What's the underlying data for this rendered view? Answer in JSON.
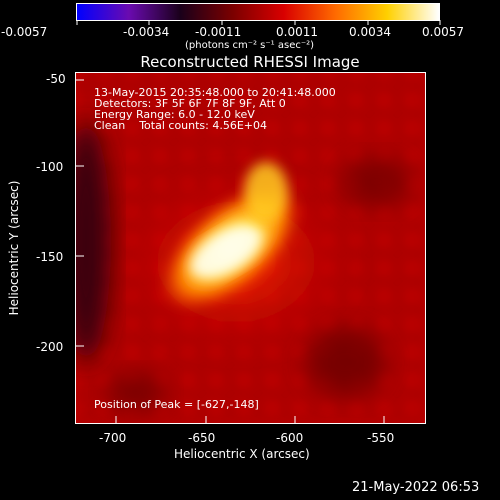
{
  "colorbar": {
    "ticks": [
      "-0.0057",
      "-0.0034",
      "-0.0011",
      "0.0011",
      "0.0034",
      "0.0057"
    ],
    "unit_label": "(photons cm⁻² s⁻¹ asec⁻²)",
    "colors": [
      "#0000ff",
      "#6a0bb0",
      "#1a001a",
      "#7a0000",
      "#d90000",
      "#ff6a00",
      "#ffd000",
      "#ffffff"
    ]
  },
  "title": "Reconstructed RHESSI Image",
  "info": {
    "line1": "13-May-2015 20:35:48.000 to 20:41:48.000",
    "line2": "Detectors: 3F 5F 6F 7F 8F 9F, Att 0",
    "line3": "Energy Range: 6.0 - 12.0 keV",
    "line4": "Clean    Total counts: 4.56E+04"
  },
  "peak": "Position of Peak = [-627,-148]",
  "axes": {
    "xlabel": "Heliocentric X (arcsec)",
    "ylabel": "Heliocentric Y (arcsec)",
    "x_ticks": [
      "-700",
      "-650",
      "-600",
      "-550"
    ],
    "y_ticks": [
      "-50",
      "-100",
      "-150",
      "-200"
    ]
  },
  "timestamp": "21-May-2022 06:53"
}
